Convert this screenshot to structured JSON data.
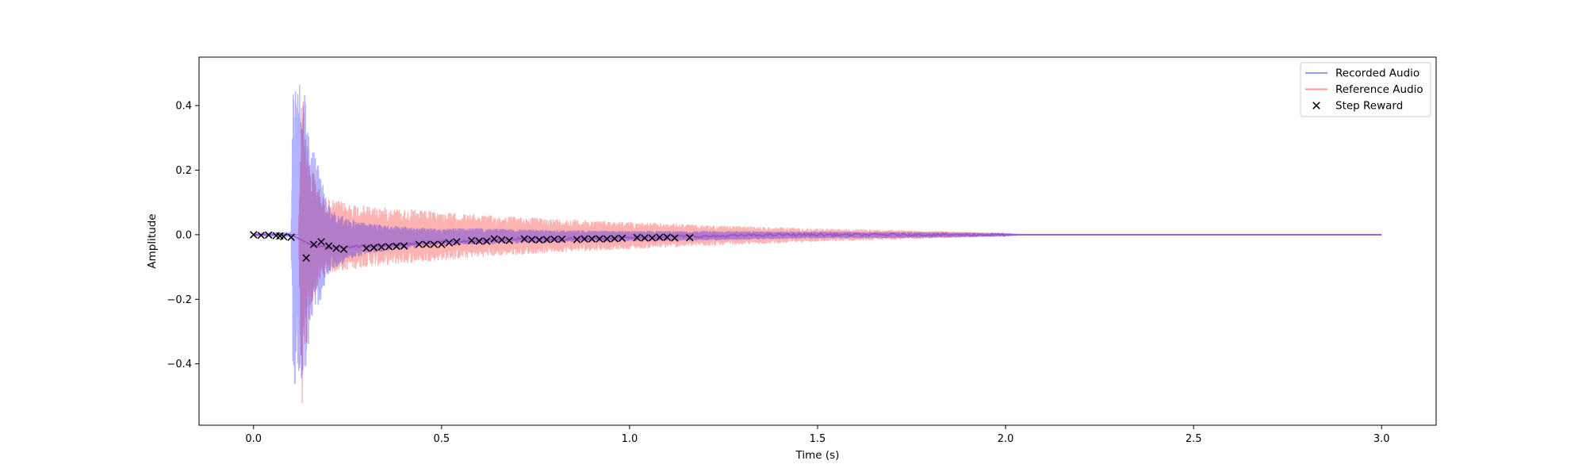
{
  "chart_data": {
    "type": "line",
    "title": "",
    "xlabel": "Time (s)",
    "ylabel": "Amplitude",
    "xlim": [
      -0.145,
      3.145
    ],
    "ylim": [
      -0.59,
      0.55
    ],
    "x_ticks": [
      0.0,
      0.5,
      1.0,
      1.5,
      2.0,
      2.5,
      3.0
    ],
    "x_tick_labels": [
      "0.0",
      "0.5",
      "1.0",
      "1.5",
      "2.0",
      "2.5",
      "3.0"
    ],
    "y_ticks": [
      -0.4,
      -0.2,
      0.0,
      0.2,
      0.4
    ],
    "y_tick_labels": [
      "−0.4",
      "−0.2",
      "0.0",
      "0.2",
      "0.4"
    ],
    "grid": false,
    "legend": {
      "position": "top-right",
      "entries": [
        "Recorded Audio",
        "Reference Audio",
        "Step Reward"
      ]
    },
    "series": [
      {
        "name": "Recorded Audio",
        "kind": "waveform",
        "color": "#0000ff",
        "opacity": 0.3,
        "envelope": {
          "t": [
            0.0,
            0.08,
            0.1,
            0.105,
            0.11,
            0.115,
            0.12,
            0.125,
            0.13,
            0.14,
            0.15,
            0.16,
            0.18,
            0.2,
            0.25,
            0.3,
            0.4,
            0.5,
            0.6,
            0.8,
            1.0,
            1.2,
            1.5,
            1.8,
            2.02,
            2.03,
            3.0
          ],
          "upper": [
            0.005,
            0.008,
            0.01,
            0.46,
            0.48,
            0.51,
            0.52,
            0.5,
            0.44,
            0.44,
            0.32,
            0.26,
            0.18,
            0.09,
            0.05,
            0.035,
            0.025,
            0.02,
            0.02,
            0.015,
            0.012,
            0.012,
            0.01,
            0.008,
            0.005,
            0.0,
            0.0
          ],
          "lower": [
            -0.005,
            -0.008,
            -0.01,
            -0.46,
            -0.47,
            -0.48,
            -0.44,
            -0.46,
            -0.47,
            -0.41,
            -0.32,
            -0.26,
            -0.2,
            -0.12,
            -0.08,
            -0.06,
            -0.045,
            -0.035,
            -0.03,
            -0.025,
            -0.02,
            -0.018,
            -0.012,
            -0.01,
            -0.005,
            0.0,
            0.0
          ]
        }
      },
      {
        "name": "Reference Audio",
        "kind": "waveform",
        "color": "#ff0000",
        "opacity": 0.3,
        "envelope": {
          "t": [
            0.0,
            0.12,
            0.125,
            0.13,
            0.135,
            0.14,
            0.15,
            0.16,
            0.18,
            0.2,
            0.25,
            0.3,
            0.4,
            0.5,
            0.6,
            0.8,
            1.0,
            1.2,
            1.5,
            1.8,
            2.0,
            2.01,
            3.0
          ],
          "upper": [
            0.0,
            0.0,
            0.35,
            0.47,
            0.43,
            0.3,
            0.22,
            0.2,
            0.12,
            0.11,
            0.1,
            0.09,
            0.08,
            0.07,
            0.062,
            0.05,
            0.04,
            0.03,
            0.02,
            0.012,
            0.005,
            0.0,
            0.0
          ],
          "lower": [
            0.0,
            0.0,
            -0.4,
            -0.54,
            -0.45,
            -0.35,
            -0.25,
            -0.2,
            -0.14,
            -0.12,
            -0.11,
            -0.1,
            -0.09,
            -0.08,
            -0.07,
            -0.055,
            -0.045,
            -0.035,
            -0.022,
            -0.012,
            -0.005,
            0.0,
            0.0
          ]
        },
        "trend": {
          "t": [
            0.0,
            0.1,
            0.15,
            0.2,
            0.3,
            0.4,
            0.5,
            0.6,
            0.7,
            0.8,
            0.9,
            1.0,
            1.1,
            1.2,
            1.4,
            1.6,
            1.8,
            2.0,
            3.0
          ],
          "y": [
            0.0,
            0.0,
            -0.03,
            -0.04,
            -0.035,
            -0.03,
            -0.022,
            -0.02,
            -0.012,
            -0.015,
            -0.01,
            -0.01,
            -0.005,
            -0.005,
            0.0,
            0.0,
            0.0,
            0.0,
            0.0
          ]
        }
      },
      {
        "name": "Step Reward",
        "kind": "scatter",
        "marker": "x",
        "color": "#000000",
        "points": [
          [
            0.0,
            0.0
          ],
          [
            0.02,
            -0.002
          ],
          [
            0.04,
            -0.001
          ],
          [
            0.06,
            -0.003
          ],
          [
            0.07,
            -0.004
          ],
          [
            0.08,
            -0.006
          ],
          [
            0.1,
            -0.008
          ],
          [
            0.14,
            -0.072
          ],
          [
            0.16,
            -0.03
          ],
          [
            0.18,
            -0.022
          ],
          [
            0.2,
            -0.035
          ],
          [
            0.22,
            -0.042
          ],
          [
            0.24,
            -0.045
          ],
          [
            0.3,
            -0.042
          ],
          [
            0.32,
            -0.04
          ],
          [
            0.34,
            -0.038
          ],
          [
            0.36,
            -0.037
          ],
          [
            0.38,
            -0.036
          ],
          [
            0.4,
            -0.035
          ],
          [
            0.44,
            -0.03
          ],
          [
            0.46,
            -0.03
          ],
          [
            0.48,
            -0.03
          ],
          [
            0.5,
            -0.03
          ],
          [
            0.52,
            -0.025
          ],
          [
            0.54,
            -0.022
          ],
          [
            0.58,
            -0.018
          ],
          [
            0.6,
            -0.02
          ],
          [
            0.62,
            -0.02
          ],
          [
            0.64,
            -0.013
          ],
          [
            0.66,
            -0.016
          ],
          [
            0.68,
            -0.018
          ],
          [
            0.72,
            -0.013
          ],
          [
            0.74,
            -0.015
          ],
          [
            0.76,
            -0.016
          ],
          [
            0.78,
            -0.015
          ],
          [
            0.8,
            -0.014
          ],
          [
            0.82,
            -0.014
          ],
          [
            0.86,
            -0.015
          ],
          [
            0.88,
            -0.013
          ],
          [
            0.9,
            -0.013
          ],
          [
            0.92,
            -0.013
          ],
          [
            0.94,
            -0.013
          ],
          [
            0.96,
            -0.012
          ],
          [
            0.98,
            -0.011
          ],
          [
            1.02,
            -0.009
          ],
          [
            1.04,
            -0.01
          ],
          [
            1.06,
            -0.01
          ],
          [
            1.08,
            -0.008
          ],
          [
            1.1,
            -0.008
          ],
          [
            1.12,
            -0.01
          ],
          [
            1.16,
            -0.009
          ]
        ]
      }
    ]
  }
}
